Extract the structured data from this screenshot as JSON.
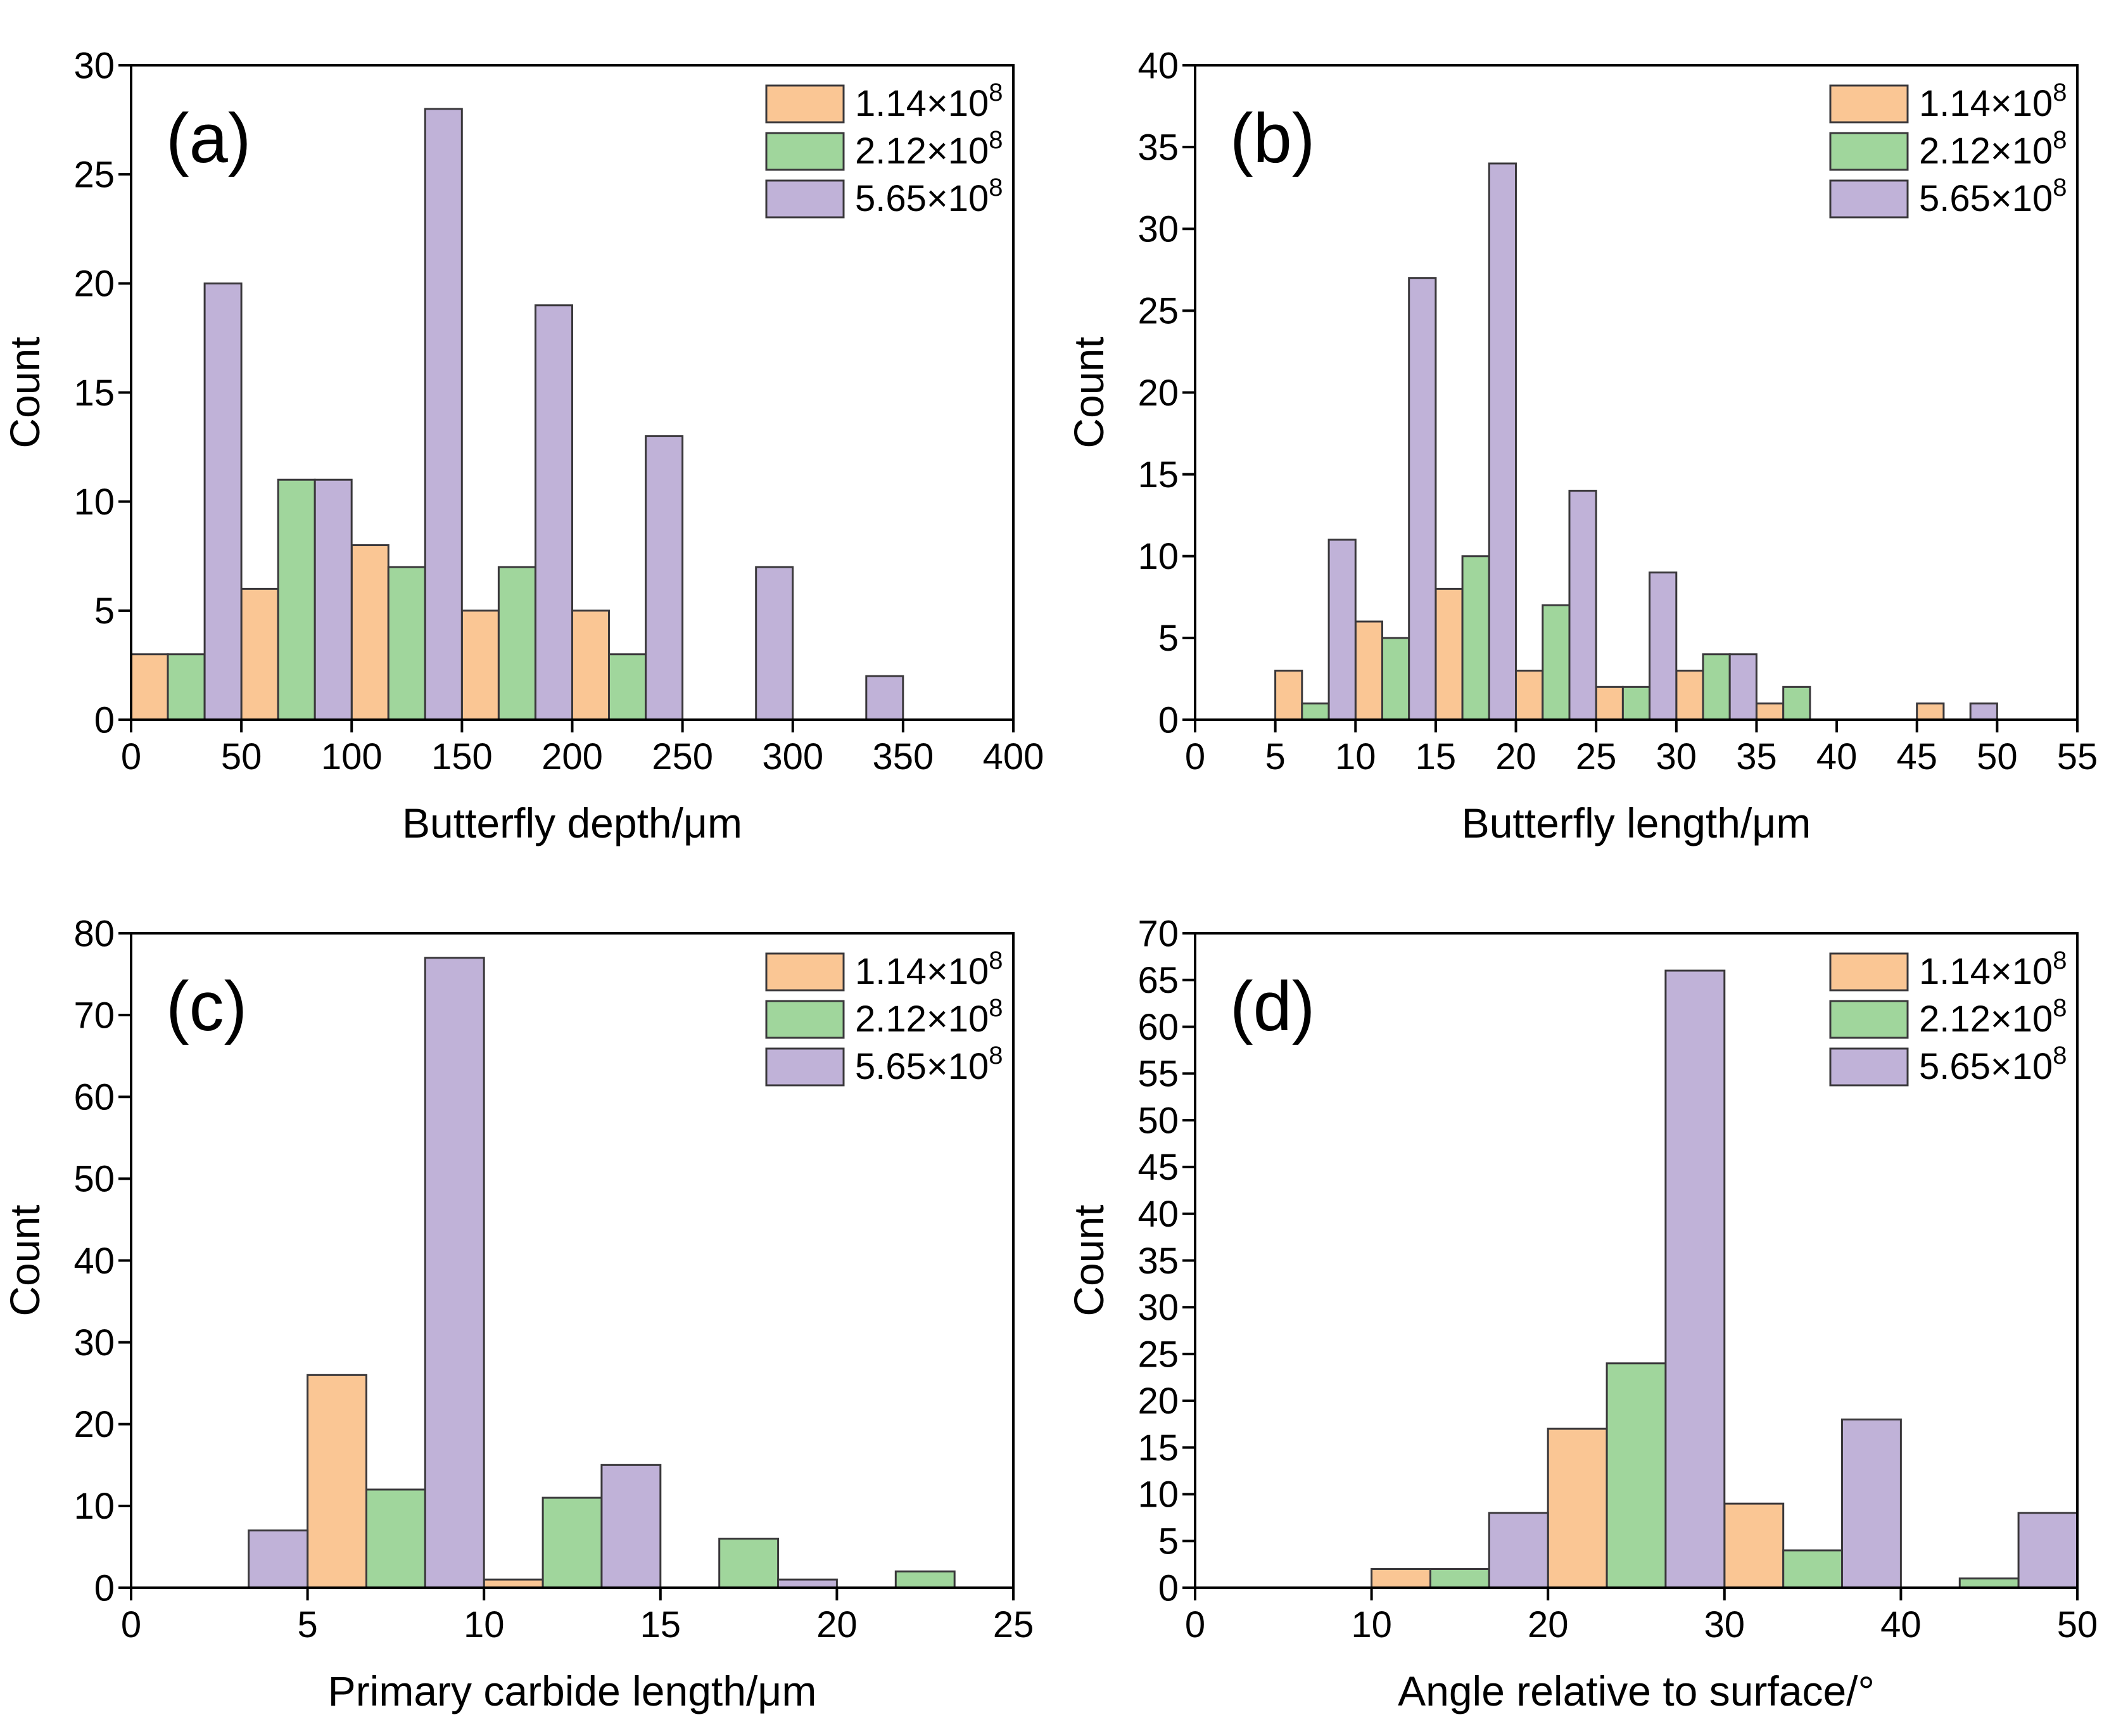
{
  "figure": {
    "background": "#ffffff",
    "text_color": "#000000",
    "axis_color": "#000000",
    "bar_edge_color": "#3a383b"
  },
  "legend": {
    "position": "top-right",
    "entries": [
      {
        "label_base": "1.14×10",
        "label_exponent": "8",
        "color": "#fac694"
      },
      {
        "label_base": "2.12×10",
        "label_exponent": "8",
        "color": "#a0d69c"
      },
      {
        "label_base": "5.65×10",
        "label_exponent": "8",
        "color": "#c0b2d8"
      }
    ]
  },
  "chart_data": [
    {
      "type": "bar",
      "panel_label": "(a)",
      "title": "",
      "xlabel": "Butterfly depth/μm",
      "ylabel": "Count",
      "xlim": [
        0,
        400
      ],
      "ylim": [
        0,
        30
      ],
      "xticks": [
        0,
        50,
        100,
        150,
        200,
        250,
        300,
        350,
        400
      ],
      "yticks": [
        0,
        5,
        10,
        15,
        20,
        25,
        30
      ],
      "grid": false,
      "bin_width": 50,
      "bin_starts": [
        0,
        50,
        100,
        150,
        200,
        250,
        300
      ],
      "series": [
        {
          "name": "1.14×10^8",
          "values": [
            3,
            6,
            8,
            5,
            5,
            0,
            0
          ]
        },
        {
          "name": "2.12×10^8",
          "values": [
            3,
            11,
            7,
            7,
            3,
            0,
            0
          ]
        },
        {
          "name": "5.65×10^8",
          "values": [
            20,
            11,
            28,
            19,
            13,
            7,
            2
          ]
        }
      ]
    },
    {
      "type": "bar",
      "panel_label": "(b)",
      "title": "",
      "xlabel": "Butterfly length/μm",
      "ylabel": "Count",
      "xlim": [
        0,
        55
      ],
      "ylim": [
        0,
        40
      ],
      "xticks": [
        0,
        5,
        10,
        15,
        20,
        25,
        30,
        35,
        40,
        45,
        50,
        55
      ],
      "yticks": [
        0,
        5,
        10,
        15,
        20,
        25,
        30,
        35,
        40
      ],
      "grid": false,
      "bin_width": 5,
      "bin_starts": [
        5,
        10,
        15,
        20,
        25,
        30,
        35,
        40,
        45
      ],
      "series": [
        {
          "name": "1.14×10^8",
          "values": [
            3,
            6,
            8,
            3,
            2,
            3,
            1,
            0,
            1
          ]
        },
        {
          "name": "2.12×10^8",
          "values": [
            1,
            5,
            10,
            7,
            2,
            4,
            2,
            0,
            0
          ]
        },
        {
          "name": "5.65×10^8",
          "values": [
            11,
            27,
            34,
            14,
            9,
            4,
            0,
            0,
            1
          ]
        }
      ]
    },
    {
      "type": "bar",
      "panel_label": "(c)",
      "title": "",
      "xlabel": "Primary carbide length/μm",
      "ylabel": "Count",
      "xlim": [
        0,
        25
      ],
      "ylim": [
        0,
        80
      ],
      "xticks": [
        0,
        5,
        10,
        15,
        20,
        25
      ],
      "yticks": [
        0,
        10,
        20,
        30,
        40,
        50,
        60,
        70,
        80
      ],
      "grid": false,
      "bin_width": 5,
      "bin_starts": [
        0,
        5,
        10,
        15,
        20
      ],
      "series": [
        {
          "name": "1.14×10^8",
          "values": [
            0,
            26,
            1,
            0,
            0
          ]
        },
        {
          "name": "2.12×10^8",
          "values": [
            0,
            12,
            11,
            6,
            2
          ]
        },
        {
          "name": "5.65×10^8",
          "values": [
            7,
            77,
            15,
            1,
            0
          ]
        }
      ]
    },
    {
      "type": "bar",
      "panel_label": "(d)",
      "title": "",
      "xlabel": "Angle relative to surface/°",
      "ylabel": "Count",
      "xlim": [
        0,
        50
      ],
      "ylim": [
        0,
        70
      ],
      "xticks": [
        0,
        10,
        20,
        30,
        40,
        50
      ],
      "yticks": [
        0,
        5,
        10,
        15,
        20,
        25,
        30,
        35,
        40,
        45,
        50,
        55,
        60,
        65,
        70
      ],
      "grid": false,
      "bin_width": 10,
      "bin_starts": [
        10,
        20,
        30,
        40
      ],
      "series": [
        {
          "name": "1.14×10^8",
          "values": [
            2,
            17,
            9,
            0
          ]
        },
        {
          "name": "2.12×10^8",
          "values": [
            2,
            24,
            4,
            1
          ]
        },
        {
          "name": "5.65×10^8",
          "values": [
            8,
            66,
            18,
            8
          ]
        }
      ]
    }
  ]
}
